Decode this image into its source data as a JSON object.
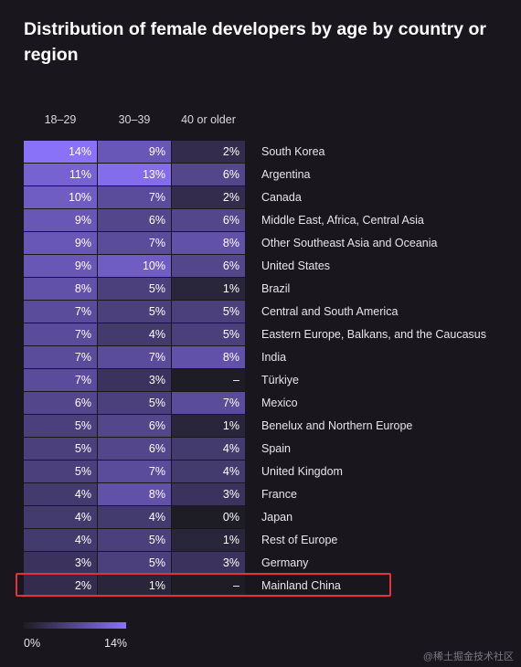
{
  "title": "Distribution of female developers by age by country or region",
  "columns": [
    "18–29",
    "30–39",
    "40 or older"
  ],
  "legend": {
    "min_label": "0%",
    "max_label": "14%"
  },
  "watermark": "@稀土掘金技术社区",
  "highlighted_row": "Mainland China",
  "colors": {
    "scale_low": "#1e1c24",
    "scale_high": "#8a72f8",
    "highlight": "#e0333e",
    "background": "#19171d"
  },
  "chart_data": {
    "type": "heatmap",
    "title": "Distribution of female developers by age by country or region",
    "x_categories": [
      "18–29",
      "30–39",
      "40 or older"
    ],
    "color_scale": {
      "min": 0,
      "max": 14,
      "unit": "%"
    },
    "rows": [
      {
        "label": "South Korea",
        "values": [
          14,
          9,
          2
        ],
        "display": [
          "14%",
          "9%",
          "2%"
        ]
      },
      {
        "label": "Argentina",
        "values": [
          11,
          13,
          6
        ],
        "display": [
          "11%",
          "13%",
          "6%"
        ]
      },
      {
        "label": "Canada",
        "values": [
          10,
          7,
          2
        ],
        "display": [
          "10%",
          "7%",
          "2%"
        ]
      },
      {
        "label": "Middle East, Africa, Central Asia",
        "values": [
          9,
          6,
          6
        ],
        "display": [
          "9%",
          "6%",
          "6%"
        ]
      },
      {
        "label": "Other Southeast Asia and Oceania",
        "values": [
          9,
          7,
          8
        ],
        "display": [
          "9%",
          "7%",
          "8%"
        ]
      },
      {
        "label": "United States",
        "values": [
          9,
          10,
          6
        ],
        "display": [
          "9%",
          "10%",
          "6%"
        ]
      },
      {
        "label": "Brazil",
        "values": [
          8,
          5,
          1
        ],
        "display": [
          "8%",
          "5%",
          "1%"
        ]
      },
      {
        "label": "Central and South America",
        "values": [
          7,
          5,
          5
        ],
        "display": [
          "7%",
          "5%",
          "5%"
        ]
      },
      {
        "label": "Eastern Europe, Balkans, and the Caucasus",
        "values": [
          7,
          4,
          5
        ],
        "display": [
          "7%",
          "4%",
          "5%"
        ]
      },
      {
        "label": "India",
        "values": [
          7,
          7,
          8
        ],
        "display": [
          "7%",
          "7%",
          "8%"
        ]
      },
      {
        "label": "Türkiye",
        "values": [
          7,
          3,
          null
        ],
        "display": [
          "7%",
          "3%",
          "–"
        ]
      },
      {
        "label": "Mexico",
        "values": [
          6,
          5,
          7
        ],
        "display": [
          "6%",
          "5%",
          "7%"
        ]
      },
      {
        "label": "Benelux and Northern Europe",
        "values": [
          5,
          6,
          1
        ],
        "display": [
          "5%",
          "6%",
          "1%"
        ]
      },
      {
        "label": "Spain",
        "values": [
          5,
          6,
          4
        ],
        "display": [
          "5%",
          "6%",
          "4%"
        ]
      },
      {
        "label": "United Kingdom",
        "values": [
          5,
          7,
          4
        ],
        "display": [
          "5%",
          "7%",
          "4%"
        ]
      },
      {
        "label": "France",
        "values": [
          4,
          8,
          3
        ],
        "display": [
          "4%",
          "8%",
          "3%"
        ]
      },
      {
        "label": "Japan",
        "values": [
          4,
          4,
          0
        ],
        "display": [
          "4%",
          "4%",
          "0%"
        ]
      },
      {
        "label": "Rest of Europe",
        "values": [
          4,
          5,
          1
        ],
        "display": [
          "4%",
          "5%",
          "1%"
        ]
      },
      {
        "label": "Germany",
        "values": [
          3,
          5,
          3
        ],
        "display": [
          "3%",
          "5%",
          "3%"
        ]
      },
      {
        "label": "Mainland China",
        "values": [
          2,
          1,
          null
        ],
        "display": [
          "2%",
          "1%",
          "–"
        ]
      }
    ]
  }
}
